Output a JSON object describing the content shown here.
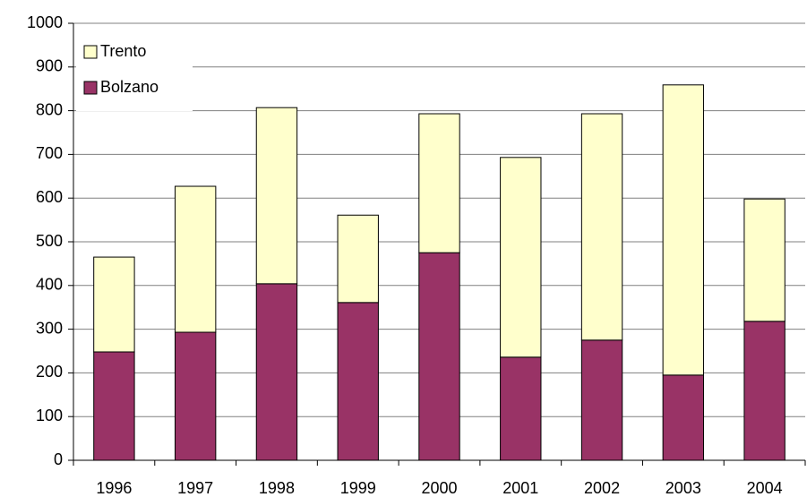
{
  "chart_data": {
    "type": "stacked_bar",
    "categories": [
      "1996",
      "1997",
      "1998",
      "1999",
      "2000",
      "2001",
      "2002",
      "2003",
      "2004"
    ],
    "series": [
      {
        "name": "Trento",
        "color": "#ffffcc",
        "values": [
          217,
          334,
          403,
          200,
          318,
          457,
          518,
          664,
          280
        ]
      },
      {
        "name": "Bolzano",
        "color": "#993366",
        "values": [
          248,
          293,
          404,
          361,
          475,
          236,
          275,
          195,
          318
        ]
      }
    ],
    "ylim": [
      0,
      1000
    ],
    "yticks": [
      0,
      100,
      200,
      300,
      400,
      500,
      600,
      700,
      800,
      900,
      1000
    ],
    "grid": true,
    "legend": "top-left"
  }
}
